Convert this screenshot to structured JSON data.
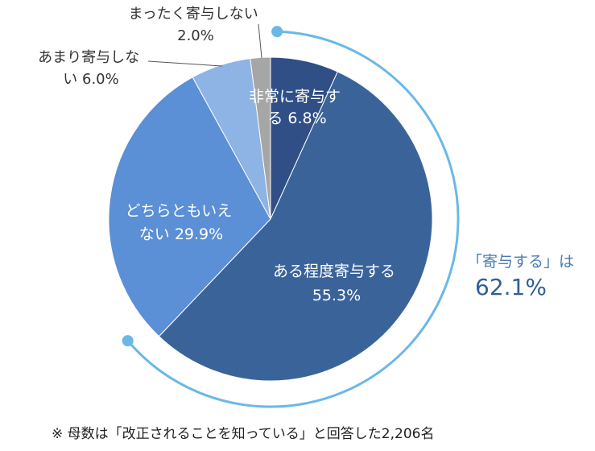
{
  "chart_data": {
    "type": "pie",
    "slices": [
      {
        "name": "非常に寄与する",
        "value": 6.8,
        "color": "#2f4f86",
        "label_lines": [
          "非常に寄与す",
          "る 6.8%"
        ]
      },
      {
        "name": "ある程度寄与する",
        "value": 55.3,
        "color": "#3a6499",
        "label_lines": [
          "ある程度寄与する",
          "55.3%"
        ]
      },
      {
        "name": "どちらともいえない",
        "value": 29.9,
        "color": "#5b8fd6",
        "label_lines": [
          "どちらともいえ",
          "ない 29.9%"
        ]
      },
      {
        "name": "あまり寄与しない",
        "value": 6.0,
        "color": "#8eb3e5",
        "label_lines": [
          "あまり寄与しな",
          "い 6.0%"
        ]
      },
      {
        "name": "まったく寄与しない",
        "value": 2.0,
        "color": "#a6a6a6",
        "label_lines": [
          "まったく寄与しない",
          "2.0%"
        ]
      }
    ],
    "arc_color": "#6bb8e8"
  },
  "callout": {
    "line1": "「寄与する」は",
    "line2": "62.1%"
  },
  "footnote": "※ 母数は「改正されることを知っている」と回答した2,206名"
}
